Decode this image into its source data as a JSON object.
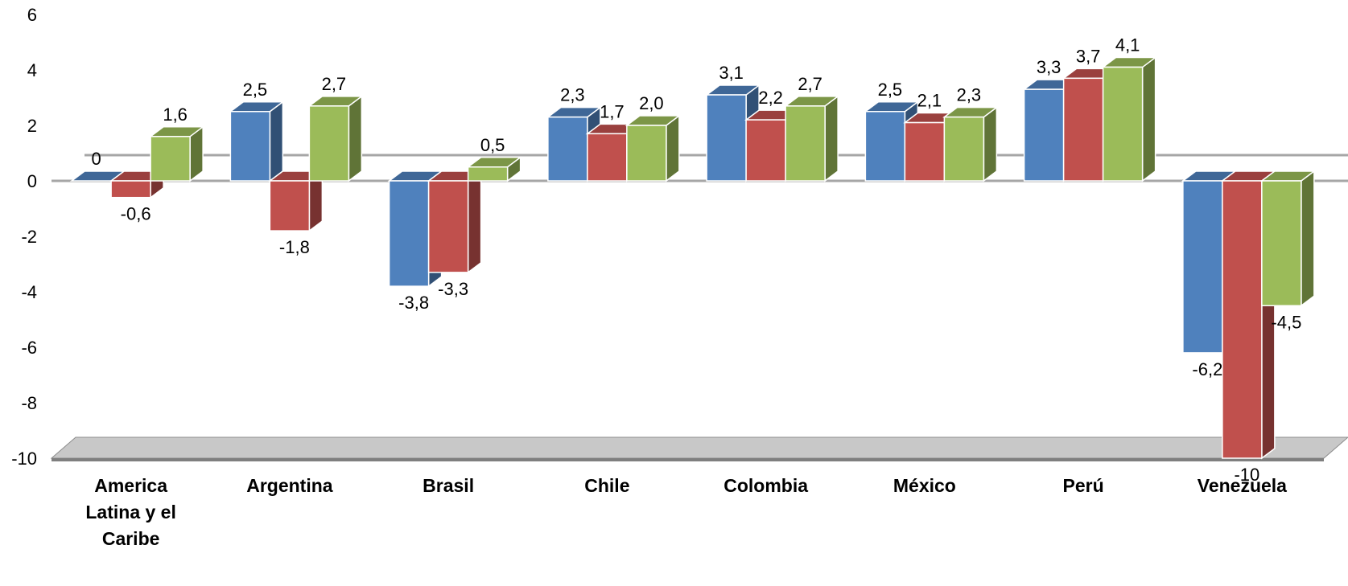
{
  "chart_data": {
    "type": "bar",
    "categories": [
      [
        "America",
        "Latina y el",
        "Caribe"
      ],
      [
        "Argentina"
      ],
      [
        "Brasil"
      ],
      [
        "Chile"
      ],
      [
        "Colombia"
      ],
      [
        "México"
      ],
      [
        "Perú"
      ],
      [
        "Venezuela"
      ]
    ],
    "series": [
      {
        "values": [
          0,
          2.5,
          -3.8,
          2.3,
          3.1,
          2.5,
          3.3,
          -6.2
        ],
        "labels": [
          "0",
          "2,5",
          "-3,8",
          "2,3",
          "3,1",
          "2,5",
          "3,3",
          "-6,2"
        ],
        "color": "#4F81BD"
      },
      {
        "values": [
          -0.6,
          -1.8,
          -3.3,
          1.7,
          2.2,
          2.1,
          3.7,
          -10
        ],
        "labels": [
          "-0,6",
          "-1,8",
          "-3,3",
          "1,7",
          "2,2",
          "2,1",
          "3,7",
          "-10"
        ],
        "color": "#C0504D"
      },
      {
        "values": [
          1.6,
          2.7,
          0.5,
          2.0,
          2.7,
          2.3,
          4.1,
          -4.5
        ],
        "labels": [
          "1,6",
          "2,7",
          "0,5",
          "2,0",
          "2,7",
          "2,3",
          "4,1",
          "-4,5"
        ],
        "color": "#9BBB59"
      }
    ],
    "y_ticks": [
      "6",
      "4",
      "2",
      "0",
      "-2",
      "-4",
      "-6",
      "-8",
      "-10"
    ],
    "ylim": [
      -10,
      6
    ],
    "grid": false,
    "style": "3d-clustered-column"
  }
}
